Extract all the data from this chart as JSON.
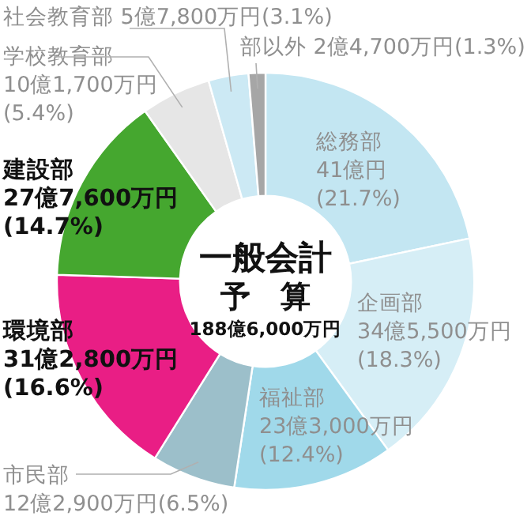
{
  "chart_data": {
    "type": "donut",
    "title": "一般会計",
    "subtitle": "予　算",
    "annotations": [
      "188億6,000万円"
    ],
    "categories": [
      "総務部",
      "企画部",
      "福祉部",
      "市民部",
      "環境部",
      "建設部",
      "学校教育部",
      "社会教育部",
      "部以外"
    ],
    "values": [
      21.7,
      18.3,
      12.4,
      6.5,
      16.6,
      14.7,
      5.4,
      3.1,
      1.3
    ],
    "value_labels": [
      "41億円\n(21.7%)",
      "34億5,500万円\n(18.3%)",
      "23億3,000万円\n(12.4%)",
      "12億2,900万円(6.5%)",
      "31億2,800万円\n(16.6%)",
      "27億7,600万円\n(14.7%)",
      "10億1,700万円\n(5.4%)",
      "5億7,800万円(3.1%)",
      "2億4,700万円(1.3%)"
    ],
    "colors": [
      "#c3e6f2",
      "#d6eef6",
      "#a0d9ea",
      "#9cbfca",
      "#e91e85",
      "#45a72f",
      "#e6e6e6",
      "#cce9f4",
      "#a6a6a6"
    ]
  }
}
